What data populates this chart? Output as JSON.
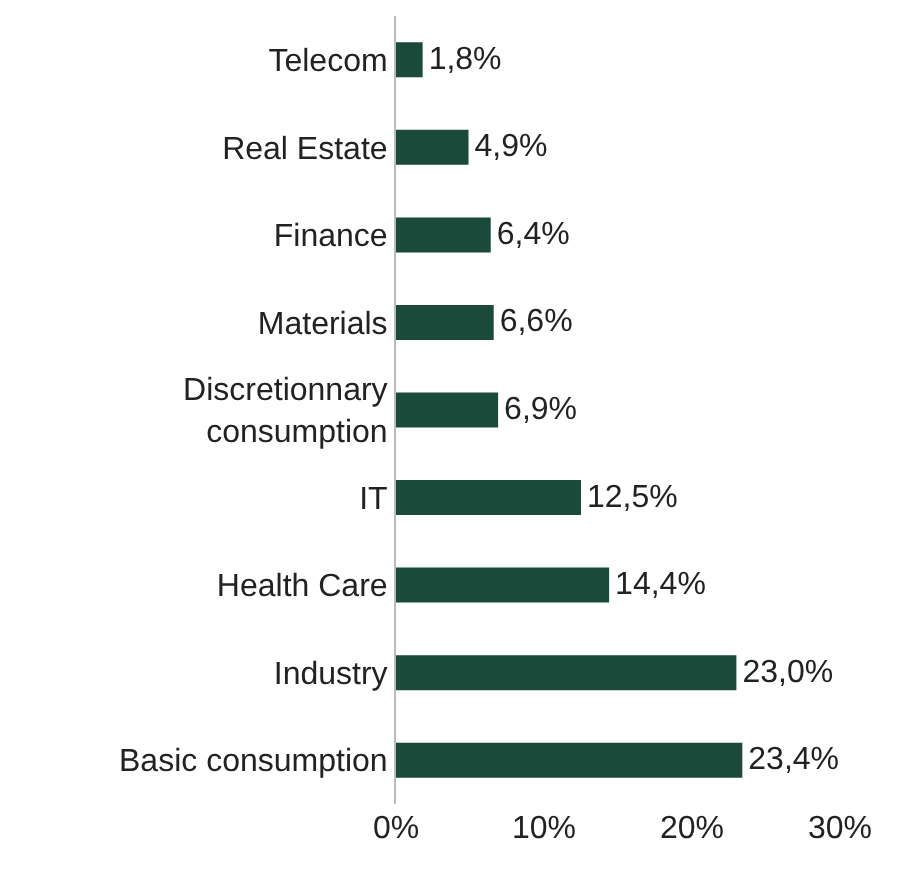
{
  "chart_data": {
    "type": "bar",
    "orientation": "horizontal",
    "categories": [
      "Telecom",
      "Real Estate",
      "Finance",
      "Materials",
      "Discretionnary consumption",
      "IT",
      "Health Care",
      "Industry",
      "Basic consumption"
    ],
    "values": [
      1.8,
      4.9,
      6.4,
      6.6,
      6.9,
      12.5,
      14.4,
      23.0,
      23.4
    ],
    "value_labels": [
      "1,8%",
      "4,9%",
      "6,4%",
      "6,6%",
      "6,9%",
      "12,5%",
      "14,4%",
      "23,0%",
      "23,4%"
    ],
    "color": "#1b4a3a",
    "xlim": [
      0,
      30
    ],
    "xticks": [
      {
        "value": 0,
        "label": "0%"
      },
      {
        "value": 10,
        "label": "10%"
      },
      {
        "value": 20,
        "label": "20%"
      },
      {
        "value": 30,
        "label": "30%"
      }
    ],
    "grid": false
  }
}
